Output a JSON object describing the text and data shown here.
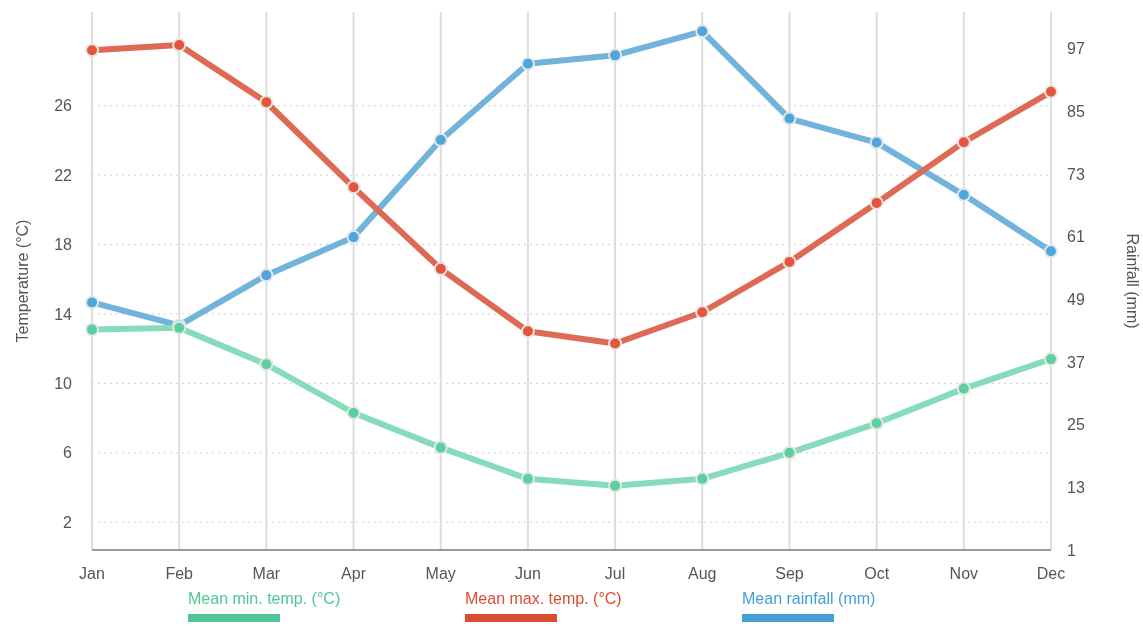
{
  "chart_data": {
    "type": "line",
    "categories": [
      "Jan",
      "Feb",
      "Mar",
      "Apr",
      "May",
      "Jun",
      "Jul",
      "Aug",
      "Sep",
      "Oct",
      "Nov",
      "Dec"
    ],
    "ylabel": "Temperature (°C)",
    "y2label": "Rainfall (mm)",
    "ylim": [
      0.4,
      31.4
    ],
    "yticks": [
      2,
      6,
      10,
      14,
      18,
      22,
      26
    ],
    "y2lim": [
      1,
      104
    ],
    "y2ticks": [
      1,
      13,
      25,
      37,
      49,
      61,
      73,
      85,
      97
    ],
    "grid": true,
    "legend": "bottom",
    "marker": "circle",
    "line_style": "solid",
    "series": [
      {
        "name": "Mean min. temp. (°C)",
        "color": "#86dcb8",
        "values": [
          13.1,
          13.2,
          11.1,
          8.3,
          6.3,
          4.5,
          4.1,
          4.5,
          6.0,
          7.7,
          9.7,
          11.4
        ]
      },
      {
        "name": "Mean max. temp. (°C)",
        "color": "#de6a55",
        "values": [
          29.2,
          29.5,
          26.2,
          21.3,
          16.6,
          13.0,
          12.3,
          14.1,
          17.0,
          20.4,
          23.9,
          26.8
        ]
      },
      {
        "name": "Mean rainfall (mm)",
        "color": "#72b3dc",
        "axis": "y2",
        "values": [
          48.4,
          44.0,
          53.6,
          60.9,
          79.5,
          94.1,
          95.7,
          100.3,
          83.6,
          79.0,
          69.0,
          58.2
        ]
      }
    ]
  }
}
